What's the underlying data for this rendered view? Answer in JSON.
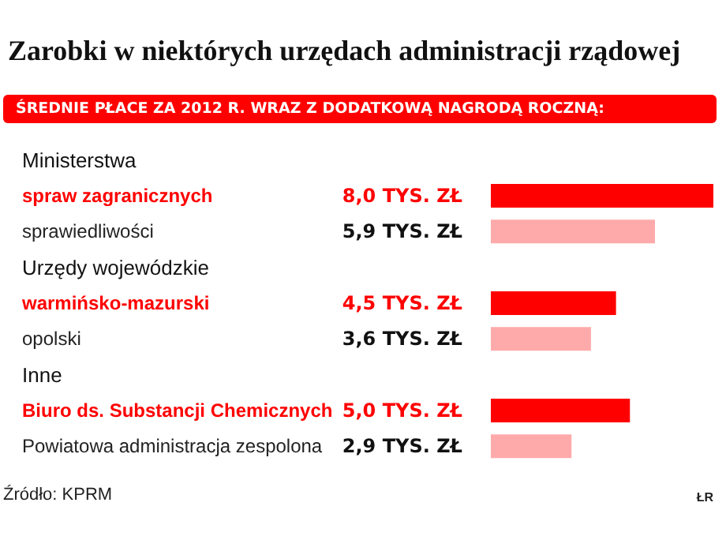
{
  "chart_data": {
    "type": "bar",
    "orientation": "horizontal",
    "title": "Zarobki w niektórych urzędach administracji rządowej",
    "subtitle": "ŚREDNIE PŁACE ZA 2012 R. WRAZ Z DODATKOWĄ NAGRODĄ ROCZNĄ:",
    "categories": [
      "Ministerstwa",
      "spraw zagranicznych",
      "sprawiedliwości",
      "Urzędy wojewódzkie",
      "warmińsko-mazurski",
      "opolski",
      "Inne",
      "Biuro ds. Substancji Chemicznych",
      "Powiatowa administracja zespolona"
    ],
    "series": [
      {
        "color": "#ff0000",
        "values": [
          null,
          8.0,
          null,
          null,
          4.5,
          null,
          null,
          5.0,
          null
        ],
        "value_labels": [
          null,
          "8,0 TYS. ZŁ",
          null,
          null,
          "4,5 TYS. ZŁ",
          null,
          null,
          "5,0 TYS. ZŁ",
          null
        ]
      },
      {
        "color": "#ffaaaa",
        "values": [
          null,
          null,
          5.9,
          null,
          null,
          3.6,
          null,
          null,
          2.9
        ],
        "value_labels": [
          null,
          null,
          "5,9 TYS. ZŁ",
          null,
          null,
          "3,6 TYS. ZŁ",
          null,
          null,
          "2,9 TYS. ZŁ"
        ]
      }
    ],
    "annotations": [
      "Źródło: KPRM",
      "ŁR"
    ]
  }
}
